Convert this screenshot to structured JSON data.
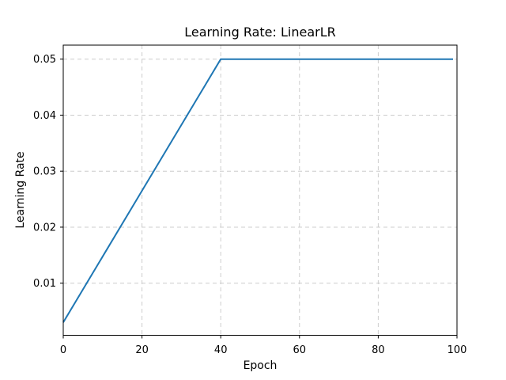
{
  "chart_data": {
    "type": "line",
    "title": "Learning Rate: LinearLR",
    "xlabel": "Epoch",
    "ylabel": "Learning Rate",
    "series": [
      {
        "name": "learning-rate",
        "x": [
          0,
          40,
          99
        ],
        "y": [
          0.003,
          0.05,
          0.05
        ],
        "interpolation": "piecewise-linear (linear warmup from ~0.003 at epoch 0 to 0.05 at epoch 40, then constant 0.05 through epoch 99)",
        "color": "#1f77b4"
      }
    ],
    "xlim": [
      0,
      100
    ],
    "ylim": [
      0.0007,
      0.0525
    ],
    "xticks": [
      0,
      20,
      40,
      60,
      80,
      100
    ],
    "xtick_labels": [
      "0",
      "20",
      "40",
      "60",
      "80",
      "100"
    ],
    "yticks": [
      0.01,
      0.02,
      0.03,
      0.04,
      0.05
    ],
    "ytick_labels": [
      "0.01",
      "0.02",
      "0.03",
      "0.04",
      "0.05"
    ],
    "grid": true,
    "grid_style": "dashed",
    "grid_color": "#cccccc",
    "legend_position": "none",
    "background": "#ffffff",
    "spine_color": "#000000"
  }
}
